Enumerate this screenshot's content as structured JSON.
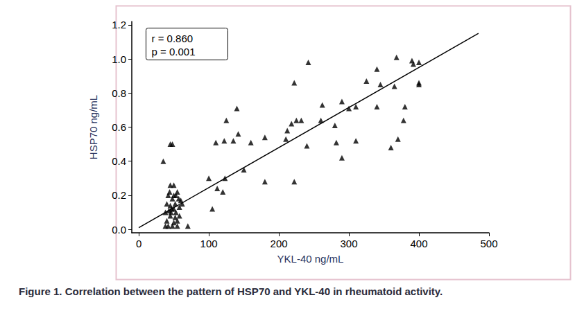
{
  "chart_data": {
    "type": "scatter",
    "title": "Figure 1. Correlation between the pattern of HSP70 and YKL-40 in rheumatoid activity.",
    "x_label": "YKL-40 ng/mL",
    "y_label": "HSP70 ng/mL",
    "annotations": [
      "r = 0.860",
      "p = 0.001"
    ],
    "marker": "triangle",
    "color": "#000000",
    "grid": false,
    "xlim": [
      -10,
      500
    ],
    "xticks": [
      0,
      100,
      200,
      300,
      400,
      500
    ],
    "ylim": [
      -0.02,
      1.22
    ],
    "yticks": [
      {
        "value": 0,
        "label": "0.0"
      },
      0.2,
      0.4,
      0.6,
      0.8,
      {
        "value": 1,
        "label": "1.0"
      },
      1.2
    ],
    "x": [
      35,
      45,
      48,
      38,
      40,
      42,
      44,
      45,
      50,
      40,
      42,
      45,
      47,
      48,
      50,
      52,
      53,
      55,
      55,
      57,
      58,
      60,
      62,
      48,
      50,
      52,
      45,
      43,
      55,
      70,
      38,
      46,
      50,
      53,
      58,
      100,
      105,
      110,
      112,
      120,
      122,
      123,
      125,
      135,
      140,
      142,
      150,
      160,
      180,
      180,
      210,
      212,
      218,
      222,
      222,
      225,
      232,
      240,
      242,
      260,
      262,
      280,
      282,
      290,
      290,
      300,
      310,
      310,
      325,
      340,
      340,
      345,
      360,
      365,
      368,
      370,
      378,
      380,
      390,
      392,
      400,
      400,
      400
    ],
    "values": [
      0.4,
      0.5,
      0.5,
      0.1,
      0.15,
      0.2,
      0.22,
      0.26,
      0.26,
      0.05,
      0.02,
      0.08,
      0.12,
      0.18,
      0.2,
      0.15,
      0.1,
      0.22,
      0.05,
      0.18,
      0.13,
      0.17,
      0.15,
      0.02,
      0.04,
      0.07,
      0.14,
      0.11,
      0.02,
      0.02,
      0.02,
      0.1,
      0.12,
      0.2,
      0.08,
      0.3,
      0.12,
      0.51,
      0.24,
      0.22,
      0.52,
      0.3,
      0.64,
      0.52,
      0.71,
      0.56,
      0.35,
      0.51,
      0.54,
      0.28,
      0.53,
      0.58,
      0.62,
      0.86,
      0.28,
      0.64,
      0.64,
      0.49,
      0.98,
      0.64,
      0.73,
      0.61,
      0.51,
      0.75,
      0.42,
      0.71,
      0.72,
      0.52,
      0.87,
      0.94,
      0.72,
      0.85,
      0.48,
      0.84,
      1.01,
      0.53,
      0.64,
      0.72,
      0.99,
      0.97,
      0.98,
      0.86,
      0.85
    ],
    "trend_line": {
      "x": [
        0,
        485
      ],
      "y": [
        0.01,
        1.15
      ],
      "color": "#000000",
      "line_style": "solid"
    }
  }
}
